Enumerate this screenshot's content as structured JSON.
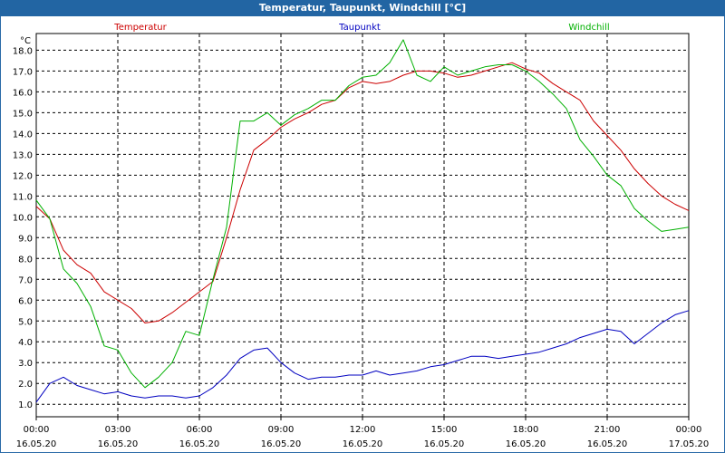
{
  "window": {
    "title": "Temperatur, Taupunkt, Windchill [°C]"
  },
  "chart_data": {
    "type": "line",
    "title": "Temperatur, Taupunkt, Windchill [°C]",
    "ylabel": "°C",
    "ylim": [
      0.4,
      18.8
    ],
    "xlim": [
      0,
      24
    ],
    "yticks": [
      "1.0",
      "2.0",
      "3.0",
      "4.0",
      "5.0",
      "6.0",
      "7.0",
      "8.0",
      "9.0",
      "10.0",
      "11.0",
      "12.0",
      "13.0",
      "14.0",
      "15.0",
      "16.0",
      "17.0",
      "18.0"
    ],
    "xticks": [
      {
        "time": "00:00",
        "date": "16.05.20"
      },
      {
        "time": "03:00",
        "date": "16.05.20"
      },
      {
        "time": "06:00",
        "date": "16.05.20"
      },
      {
        "time": "09:00",
        "date": "16.05.20"
      },
      {
        "time": "12:00",
        "date": "16.05.20"
      },
      {
        "time": "15:00",
        "date": "16.05.20"
      },
      {
        "time": "18:00",
        "date": "16.05.20"
      },
      {
        "time": "21:00",
        "date": "16.05.20"
      },
      {
        "time": "00:00",
        "date": "17.05.20"
      }
    ],
    "grid": true,
    "series": [
      {
        "name": "Temperatur",
        "color": "#cc0000",
        "x": [
          0,
          0.5,
          1,
          1.5,
          2,
          2.5,
          3,
          3.5,
          4,
          4.5,
          5,
          5.5,
          6,
          6.5,
          7,
          7.5,
          8,
          8.5,
          9,
          9.5,
          10,
          10.5,
          11,
          11.5,
          12,
          12.5,
          13,
          13.5,
          14,
          14.5,
          15,
          15.5,
          16,
          16.5,
          17,
          17.5,
          18,
          18.5,
          19,
          19.5,
          20,
          20.5,
          21,
          21.5,
          22,
          22.5,
          23,
          23.5,
          24
        ],
        "values": [
          10.5,
          9.9,
          8.4,
          7.7,
          7.3,
          6.4,
          6.0,
          5.6,
          4.9,
          5.0,
          5.4,
          5.9,
          6.4,
          6.9,
          9.0,
          11.3,
          13.2,
          13.7,
          14.3,
          14.7,
          15.0,
          15.4,
          15.6,
          16.2,
          16.5,
          16.4,
          16.5,
          16.8,
          17.0,
          17.0,
          16.9,
          16.7,
          16.8,
          17.0,
          17.2,
          17.4,
          17.1,
          16.9,
          16.4,
          16.0,
          15.6,
          14.6,
          13.9,
          13.2,
          12.3,
          11.6,
          11.0,
          10.6,
          10.3
        ]
      },
      {
        "name": "Taupunkt",
        "color": "#0000c0",
        "x": [
          0,
          0.5,
          1,
          1.5,
          2,
          2.5,
          3,
          3.5,
          4,
          4.5,
          5,
          5.5,
          6,
          6.5,
          7,
          7.5,
          8,
          8.5,
          9,
          9.5,
          10,
          10.5,
          11,
          11.5,
          12,
          12.5,
          13,
          13.5,
          14,
          14.5,
          15,
          15.5,
          16,
          16.5,
          17,
          17.5,
          18,
          18.5,
          19,
          19.5,
          20,
          20.5,
          21,
          21.5,
          22,
          22.5,
          23,
          23.5,
          24
        ],
        "values": [
          1.1,
          2.0,
          2.3,
          1.9,
          1.7,
          1.5,
          1.6,
          1.4,
          1.3,
          1.4,
          1.4,
          1.3,
          1.4,
          1.8,
          2.4,
          3.2,
          3.6,
          3.7,
          3.0,
          2.5,
          2.2,
          2.3,
          2.3,
          2.4,
          2.4,
          2.6,
          2.4,
          2.5,
          2.6,
          2.8,
          2.9,
          3.1,
          3.3,
          3.3,
          3.2,
          3.3,
          3.4,
          3.5,
          3.7,
          3.9,
          4.2,
          4.4,
          4.6,
          4.5,
          3.9,
          4.4,
          4.9,
          5.3,
          5.5
        ]
      },
      {
        "name": "Windchill",
        "color": "#00b000",
        "x": [
          0,
          0.5,
          1,
          1.5,
          2,
          2.5,
          3,
          3.5,
          4,
          4.5,
          5,
          5.5,
          6,
          6.5,
          7,
          7.5,
          8,
          8.5,
          9,
          9.5,
          10,
          10.5,
          11,
          11.5,
          12,
          12.5,
          13,
          13.5,
          14,
          14.5,
          15,
          15.5,
          16,
          16.5,
          17,
          17.5,
          18,
          18.5,
          19,
          19.5,
          20,
          20.5,
          21,
          21.5,
          22,
          22.5,
          23,
          23.5,
          24
        ],
        "values": [
          10.8,
          9.9,
          7.5,
          6.8,
          5.7,
          3.8,
          3.6,
          2.5,
          1.8,
          2.3,
          3.0,
          4.5,
          4.3,
          7.0,
          9.5,
          14.6,
          14.6,
          15.0,
          14.4,
          14.9,
          15.2,
          15.6,
          15.6,
          16.3,
          16.7,
          16.8,
          17.4,
          18.5,
          16.8,
          16.5,
          17.2,
          16.8,
          17.0,
          17.2,
          17.3,
          17.3,
          17.0,
          16.5,
          15.9,
          15.2,
          13.7,
          12.9,
          12.0,
          11.5,
          10.4,
          9.8,
          9.3,
          9.4,
          9.5
        ]
      }
    ]
  }
}
